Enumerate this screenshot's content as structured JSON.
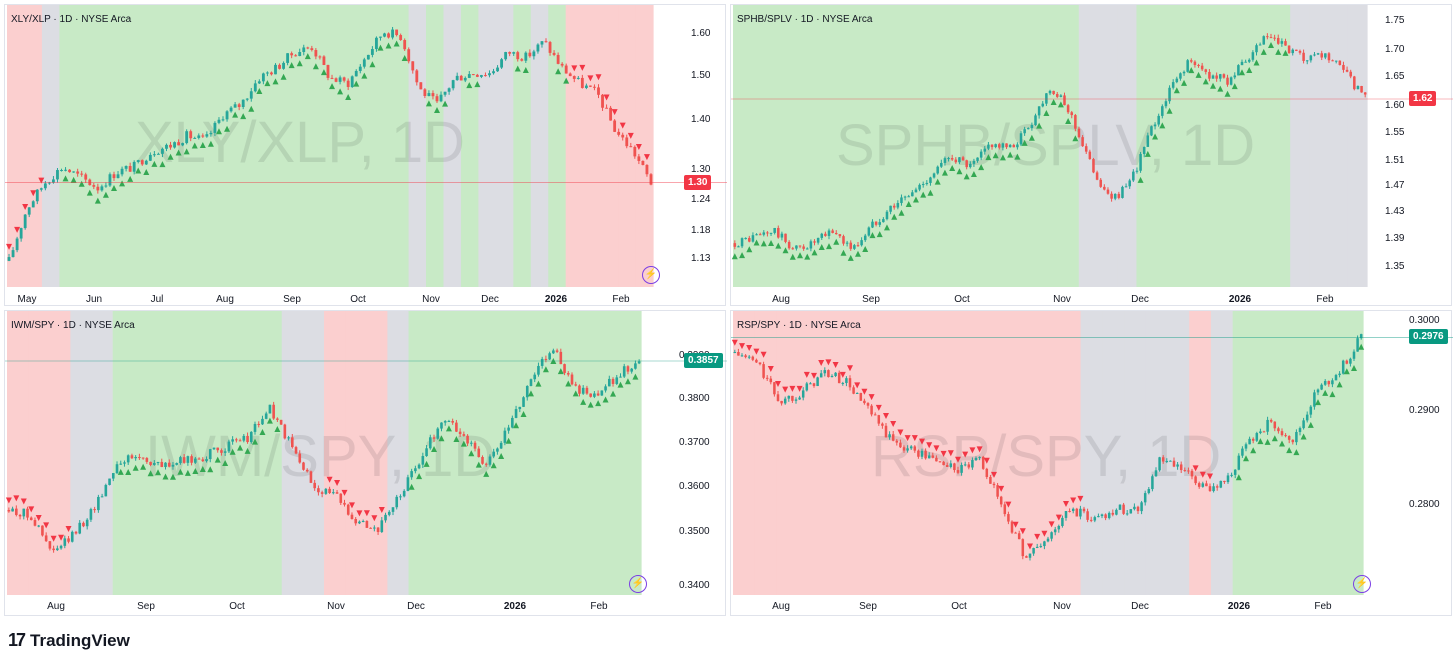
{
  "brand": {
    "name": "TradingView",
    "mark": "17"
  },
  "colors": {
    "up": "#26a69a",
    "down": "#ef5350",
    "bull_zone": "#c8eac6",
    "bear_zone": "#fbcfcf",
    "neutral_zone": "#dcdde3",
    "tri_up": "#34a853",
    "tri_down": "#f23645"
  },
  "chart_data": [
    {
      "type": "candlestick",
      "title": "XLY/XLP · 1D · NYSE Arca",
      "watermark": "XLY/XLP, 1D",
      "y_ticks": [
        "1.60",
        "1.50",
        "1.40",
        "1.30",
        "1.24",
        "1.18",
        "1.13"
      ],
      "ylim": [
        1.1,
        1.64
      ],
      "x_ticks": [
        "May",
        "Jun",
        "Jul",
        "Aug",
        "Sep",
        "Oct",
        "Nov",
        "Dec",
        "2026",
        "Feb"
      ],
      "last_price": "1.30",
      "last_color": "#f23645",
      "path": [
        1.15,
        1.25,
        1.3,
        1.33,
        1.31,
        1.29,
        1.32,
        1.33,
        1.36,
        1.37,
        1.39,
        1.38,
        1.43,
        1.45,
        1.5,
        1.52,
        1.55,
        1.56,
        1.5,
        1.49,
        1.54,
        1.59,
        1.58,
        1.48,
        1.45,
        1.5,
        1.51,
        1.51,
        1.55,
        1.54,
        1.57,
        1.52,
        1.49,
        1.47,
        1.4,
        1.36,
        1.3
      ],
      "zones": [
        "bear",
        "bear",
        "neutral",
        "bull",
        "bull",
        "bull",
        "bull",
        "bull",
        "bull",
        "bull",
        "bull",
        "bull",
        "bull",
        "bull",
        "bull",
        "bull",
        "bull",
        "bull",
        "bull",
        "bull",
        "bull",
        "bull",
        "bull",
        "neutral",
        "bull",
        "neutral",
        "bull",
        "neutral",
        "neutral",
        "bull",
        "neutral",
        "bull",
        "bear",
        "bear",
        "bear",
        "bear",
        "bear"
      ]
    },
    {
      "type": "candlestick",
      "title": "SPHB/SPLV · 1D · NYSE Arca",
      "watermark": "SPHB/SPLV, 1D",
      "y_ticks": [
        "1.75",
        "1.70",
        "1.65",
        "1.60",
        "1.55",
        "1.51",
        "1.47",
        "1.43",
        "1.39",
        "1.35"
      ],
      "ylim": [
        1.32,
        1.77
      ],
      "x_ticks": [
        "Aug",
        "Sep",
        "Oct",
        "Nov",
        "Dec",
        "2026",
        "Feb"
      ],
      "last_price": "1.62",
      "last_color": "#f23645",
      "path": [
        1.39,
        1.4,
        1.41,
        1.38,
        1.39,
        1.41,
        1.38,
        1.42,
        1.45,
        1.47,
        1.5,
        1.53,
        1.51,
        1.55,
        1.54,
        1.58,
        1.64,
        1.6,
        1.52,
        1.46,
        1.48,
        1.56,
        1.63,
        1.68,
        1.66,
        1.65,
        1.68,
        1.72,
        1.7,
        1.68,
        1.69,
        1.66,
        1.62
      ],
      "zones": [
        "bull",
        "bull",
        "bull",
        "bull",
        "bull",
        "bull",
        "bull",
        "bull",
        "bull",
        "bull",
        "bull",
        "bull",
        "bull",
        "bull",
        "bull",
        "bull",
        "bull",
        "bull",
        "neutral",
        "neutral",
        "neutral",
        "bull",
        "bull",
        "bull",
        "bull",
        "bull",
        "bull",
        "bull",
        "bull",
        "neutral",
        "neutral",
        "neutral",
        "neutral"
      ]
    },
    {
      "type": "candlestick",
      "title": "IWM/SPY · 1D · NYSE Arca",
      "watermark": "IWM/SPY, 1D",
      "y_ticks": [
        "0.3900",
        "0.3800",
        "0.3700",
        "0.3600",
        "0.3500",
        "0.3400"
      ],
      "ylim": [
        0.3375,
        0.396
      ],
      "x_ticks": [
        "Aug",
        "Sep",
        "Oct",
        "Nov",
        "Dec",
        "2026",
        "Feb"
      ],
      "last_price": "0.3857",
      "last_color": "#089981",
      "path": [
        0.355,
        0.354,
        0.346,
        0.35,
        0.356,
        0.365,
        0.366,
        0.364,
        0.365,
        0.366,
        0.368,
        0.37,
        0.376,
        0.368,
        0.36,
        0.358,
        0.353,
        0.351,
        0.358,
        0.366,
        0.374,
        0.37,
        0.364,
        0.372,
        0.382,
        0.389,
        0.38,
        0.378,
        0.383,
        0.3857
      ],
      "zones": [
        "bear",
        "bear",
        "bear",
        "neutral",
        "neutral",
        "bull",
        "bull",
        "bull",
        "bull",
        "bull",
        "bull",
        "bull",
        "bull",
        "neutral",
        "neutral",
        "bear",
        "bear",
        "bear",
        "neutral",
        "bull",
        "bull",
        "bull",
        "bull",
        "bull",
        "bull",
        "bull",
        "bull",
        "bull",
        "bull",
        "bull"
      ]
    },
    {
      "type": "candlestick",
      "title": "RSP/SPY · 1D · NYSE Arca",
      "watermark": "RSP/SPY, 1D",
      "y_ticks": [
        "0.3000",
        "0.2900",
        "0.2800"
      ],
      "ylim": [
        0.2712,
        0.3003
      ],
      "x_ticks": [
        "Aug",
        "Sep",
        "Oct",
        "Nov",
        "Dec",
        "2026",
        "Feb"
      ],
      "last_price": "0.2976",
      "last_color": "#089981",
      "path": [
        0.296,
        0.295,
        0.291,
        0.292,
        0.294,
        0.293,
        0.29,
        0.287,
        0.286,
        0.285,
        0.284,
        0.285,
        0.28,
        0.275,
        0.277,
        0.28,
        0.279,
        0.28,
        0.28,
        0.285,
        0.284,
        0.282,
        0.283,
        0.287,
        0.289,
        0.287,
        0.292,
        0.294,
        0.2976
      ],
      "zones": [
        "bear",
        "bear",
        "bear",
        "bear",
        "bear",
        "bear",
        "bear",
        "bear",
        "bear",
        "bear",
        "bear",
        "bear",
        "bear",
        "bear",
        "bear",
        "bear",
        "neutral",
        "neutral",
        "neutral",
        "neutral",
        "neutral",
        "bear",
        "neutral",
        "bull",
        "bull",
        "bull",
        "bull",
        "bull",
        "bull"
      ]
    }
  ]
}
